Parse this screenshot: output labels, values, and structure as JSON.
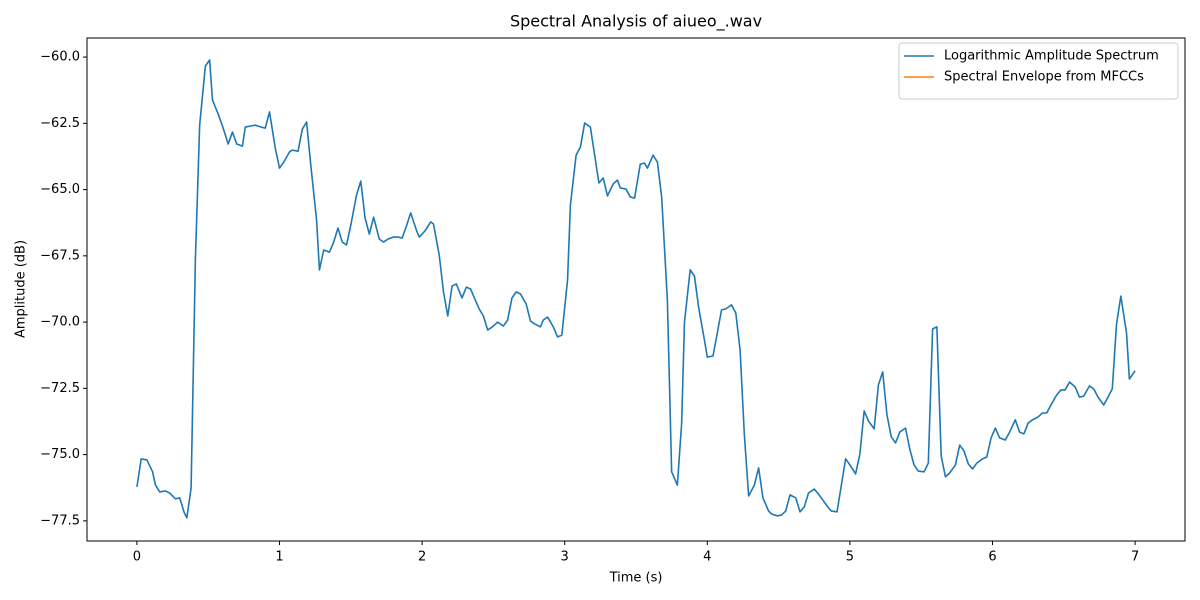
{
  "chart_data": {
    "type": "line",
    "title": "Spectral Analysis of aiueo_.wav",
    "x_label": "Time (s)",
    "y_label": "Amplitude (dB)",
    "xlim": [
      -0.35,
      7.35
    ],
    "ylim": [
      -78.26,
      -59.28
    ],
    "xticks": [
      0,
      1,
      2,
      3,
      4,
      5,
      6,
      7
    ],
    "yticks": [
      {
        "value": -60,
        "label": "−60.0"
      },
      {
        "value": -62.5,
        "label": "−62.5"
      },
      {
        "value": -65,
        "label": "−65.0"
      },
      {
        "value": -67.5,
        "label": "−67.5"
      },
      {
        "value": -70,
        "label": "−70.0"
      },
      {
        "value": -72.5,
        "label": "−72.5"
      },
      {
        "value": -75,
        "label": "−75.0"
      },
      {
        "value": -77.5,
        "label": "−77.5"
      }
    ],
    "legend": "upper right",
    "x": [
      0,
      0.03,
      0.07,
      0.11,
      0.13,
      0.16,
      0.2,
      0.23,
      0.27,
      0.3,
      0.33,
      0.35,
      0.38,
      0.41,
      0.44,
      0.48,
      0.51,
      0.53,
      0.57,
      0.6,
      0.64,
      0.67,
      0.7,
      0.74,
      0.76,
      0.8,
      0.83,
      0.87,
      0.9,
      0.93,
      0.97,
      1.0,
      1.03,
      1.07,
      1.09,
      1.13,
      1.16,
      1.19,
      1.22,
      1.26,
      1.28,
      1.31,
      1.35,
      1.38,
      1.41,
      1.44,
      1.47,
      1.5,
      1.54,
      1.57,
      1.6,
      1.63,
      1.66,
      1.7,
      1.73,
      1.76,
      1.8,
      1.83,
      1.86,
      1.89,
      1.92,
      1.96,
      1.98,
      2.02,
      2.06,
      2.08,
      2.12,
      2.15,
      2.18,
      2.21,
      2.24,
      2.28,
      2.31,
      2.34,
      2.37,
      2.4,
      2.43,
      2.46,
      2.5,
      2.53,
      2.57,
      2.6,
      2.63,
      2.66,
      2.69,
      2.73,
      2.76,
      2.79,
      2.83,
      2.85,
      2.88,
      2.92,
      2.95,
      2.98,
      3.02,
      3.04,
      3.08,
      3.11,
      3.14,
      3.18,
      3.21,
      3.24,
      3.27,
      3.3,
      3.34,
      3.37,
      3.39,
      3.43,
      3.46,
      3.49,
      3.53,
      3.56,
      3.58,
      3.62,
      3.65,
      3.68,
      3.72,
      3.75,
      3.79,
      3.82,
      3.84,
      3.88,
      3.91,
      3.94,
      3.98,
      4.0,
      4.04,
      4.07,
      4.1,
      4.13,
      4.17,
      4.2,
      4.23,
      4.26,
      4.29,
      4.33,
      4.36,
      4.39,
      4.43,
      4.45,
      4.49,
      4.52,
      4.55,
      4.58,
      4.62,
      4.65,
      4.68,
      4.71,
      4.75,
      4.78,
      4.81,
      4.84,
      4.87,
      4.91,
      4.94,
      4.97,
      5.0,
      5.04,
      5.07,
      5.1,
      5.13,
      5.17,
      5.2,
      5.23,
      5.26,
      5.29,
      5.32,
      5.35,
      5.39,
      5.42,
      5.45,
      5.48,
      5.52,
      5.55,
      5.58,
      5.61,
      5.64,
      5.67,
      5.7,
      5.74,
      5.77,
      5.8,
      5.83,
      5.86,
      5.89,
      5.93,
      5.96,
      5.99,
      6.02,
      6.05,
      6.09,
      6.12,
      6.16,
      6.19,
      6.22,
      6.25,
      6.28,
      6.32,
      6.35,
      6.38,
      6.41,
      6.45,
      6.48,
      6.51,
      6.54,
      6.58,
      6.61,
      6.64,
      6.68,
      6.71,
      6.74,
      6.78,
      6.81,
      6.84,
      6.87,
      6.9,
      6.94,
      6.96,
      7.0
    ],
    "series": [
      {
        "name": "Logarithmic Amplitude Spectrum",
        "color": "#1f77b4",
        "values": [
          -76.22,
          -75.16,
          -75.2,
          -75.65,
          -76.15,
          -76.41,
          -76.37,
          -76.45,
          -76.67,
          -76.63,
          -77.16,
          -77.39,
          -76.26,
          -67.66,
          -62.57,
          -60.34,
          -60.11,
          -61.62,
          -62.15,
          -62.6,
          -63.28,
          -62.83,
          -63.28,
          -63.36,
          -62.64,
          -62.6,
          -62.57,
          -62.64,
          -62.68,
          -62.07,
          -63.43,
          -64.19,
          -63.96,
          -63.58,
          -63.51,
          -63.55,
          -62.72,
          -62.45,
          -64.11,
          -66.15,
          -68.03,
          -67.28,
          -67.36,
          -66.98,
          -66.45,
          -66.98,
          -67.09,
          -66.34,
          -65.21,
          -64.68,
          -66.07,
          -66.68,
          -66.04,
          -66.87,
          -66.98,
          -66.87,
          -66.79,
          -66.79,
          -66.83,
          -66.38,
          -65.88,
          -66.53,
          -66.79,
          -66.56,
          -66.22,
          -66.3,
          -67.47,
          -68.86,
          -69.77,
          -68.64,
          -68.56,
          -69.09,
          -68.68,
          -68.75,
          -69.13,
          -69.5,
          -69.77,
          -70.3,
          -70.15,
          -70.0,
          -70.15,
          -69.92,
          -69.09,
          -68.86,
          -68.94,
          -69.32,
          -69.96,
          -70.07,
          -70.18,
          -69.92,
          -69.81,
          -70.18,
          -70.56,
          -70.49,
          -68.41,
          -65.58,
          -63.7,
          -63.4,
          -62.49,
          -62.64,
          -63.7,
          -64.75,
          -64.56,
          -65.24,
          -64.79,
          -64.64,
          -64.94,
          -64.98,
          -65.28,
          -65.32,
          -64.04,
          -64.0,
          -64.19,
          -63.7,
          -63.96,
          -65.28,
          -69.17,
          -75.65,
          -76.15,
          -73.84,
          -70.0,
          -68.03,
          -68.26,
          -69.47,
          -70.68,
          -71.32,
          -71.28,
          -70.41,
          -69.54,
          -69.5,
          -69.35,
          -69.66,
          -71.06,
          -74.26,
          -76.56,
          -76.15,
          -75.5,
          -76.63,
          -77.13,
          -77.24,
          -77.31,
          -77.28,
          -77.13,
          -76.52,
          -76.63,
          -77.16,
          -76.97,
          -76.45,
          -76.3,
          -76.49,
          -76.71,
          -76.94,
          -77.13,
          -77.16,
          -76.15,
          -75.16,
          -75.39,
          -75.73,
          -74.98,
          -73.35,
          -73.73,
          -74.03,
          -72.37,
          -71.88,
          -73.5,
          -74.33,
          -74.56,
          -74.15,
          -74.0,
          -74.79,
          -75.39,
          -75.62,
          -75.65,
          -75.32,
          -70.26,
          -70.18,
          -75.05,
          -75.84,
          -75.69,
          -75.39,
          -74.64,
          -74.86,
          -75.35,
          -75.54,
          -75.32,
          -75.16,
          -75.09,
          -74.37,
          -74.0,
          -74.37,
          -74.45,
          -74.15,
          -73.69,
          -74.15,
          -74.22,
          -73.81,
          -73.69,
          -73.58,
          -73.43,
          -73.43,
          -73.13,
          -72.75,
          -72.56,
          -72.56,
          -72.26,
          -72.45,
          -72.83,
          -72.79,
          -72.41,
          -72.52,
          -72.83,
          -73.13,
          -72.83,
          -72.52,
          -70.07,
          -69.02,
          -70.41,
          -72.15,
          -71.84
        ]
      },
      {
        "name": "Spectral Envelope from MFCCs",
        "color": "#ff7f0e",
        "values": [
          null,
          null,
          null,
          null,
          null,
          null,
          null,
          null,
          null,
          null,
          null,
          null,
          null,
          null,
          null,
          null,
          null,
          null,
          null,
          null,
          null,
          null,
          null,
          null,
          null,
          null,
          null,
          null,
          null,
          null,
          null,
          null,
          null,
          null,
          null,
          null,
          null,
          null,
          null,
          null,
          null,
          null,
          null,
          null,
          null,
          null,
          null,
          null,
          null,
          null,
          null,
          null,
          null,
          null,
          null,
          null,
          null,
          null,
          null,
          null,
          null,
          null,
          null,
          null,
          null,
          null,
          null,
          null,
          null,
          null,
          null,
          null,
          null,
          null,
          null,
          null,
          null,
          null,
          null,
          null,
          null,
          null,
          null,
          null,
          null,
          null,
          null,
          null,
          null,
          null,
          null,
          null,
          null,
          null,
          null,
          null,
          null,
          null,
          null,
          null,
          null,
          null,
          null,
          null,
          null,
          null,
          null,
          null,
          null,
          null,
          null,
          null,
          null,
          null,
          null,
          null,
          null,
          null,
          null,
          null,
          null,
          null,
          null,
          null,
          null,
          null,
          null,
          null,
          null,
          null,
          null,
          null,
          null,
          null,
          null,
          null,
          null,
          null,
          null,
          null,
          null,
          null,
          null,
          null,
          null,
          null,
          null,
          null,
          null,
          null,
          null,
          null,
          null,
          null,
          null,
          null,
          null,
          null,
          null,
          null,
          null,
          null,
          null,
          null,
          null,
          null,
          null,
          null,
          null,
          null,
          null,
          null,
          null,
          null,
          null,
          null,
          null,
          null,
          null,
          null,
          null,
          null,
          null,
          null,
          null,
          null,
          null,
          null,
          null,
          null,
          null,
          null,
          null,
          null,
          null,
          null,
          null,
          null,
          null,
          null,
          null,
          null,
          null,
          null,
          null,
          null,
          null,
          null,
          null,
          null,
          null,
          null,
          null,
          null,
          null,
          null,
          null,
          null,
          null
        ]
      }
    ]
  }
}
